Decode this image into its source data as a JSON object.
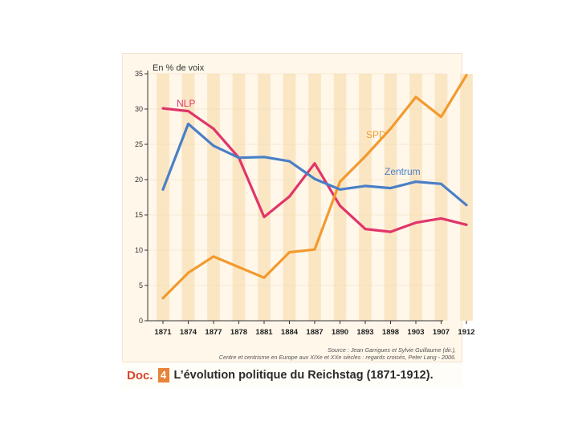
{
  "chart_data": {
    "type": "line",
    "title": "",
    "ylabel": "En % de voix",
    "xlabel": "",
    "ylim": [
      0,
      35
    ],
    "yticks": [
      0,
      5,
      10,
      15,
      20,
      25,
      30,
      35
    ],
    "categories": [
      "1871",
      "1874",
      "1877",
      "1878",
      "1881",
      "1884",
      "1887",
      "1890",
      "1893",
      "1898",
      "1903",
      "1907",
      "1912"
    ],
    "series": [
      {
        "name": "NLP",
        "color": "#e0356a",
        "values": [
          30.1,
          29.7,
          27.2,
          23.1,
          14.7,
          17.6,
          22.3,
          16.3,
          13.0,
          12.6,
          13.9,
          14.5,
          13.6
        ]
      },
      {
        "name": "SPD",
        "color": "#f29a2e",
        "values": [
          3.2,
          6.8,
          9.1,
          7.6,
          6.1,
          9.7,
          10.1,
          19.7,
          23.3,
          27.2,
          31.7,
          28.9,
          34.8
        ]
      },
      {
        "name": "Zentrum",
        "color": "#4a7fc7",
        "values": [
          18.6,
          27.9,
          24.8,
          23.1,
          23.2,
          22.6,
          20.1,
          18.6,
          19.1,
          18.8,
          19.7,
          19.4,
          16.4
        ]
      }
    ]
  },
  "source": {
    "line1": "Source : Jean Garrigues et Sylvie Guillaume (dir.),",
    "line2": "Centre et centrisme en Europe aux XIXe et XXe siècles : regards croisés, Peter Lang - 2006."
  },
  "caption": {
    "doc_label": "Doc.",
    "doc_number": "4",
    "title": "L’évolution politique du Reichstag (1871-1912)."
  }
}
